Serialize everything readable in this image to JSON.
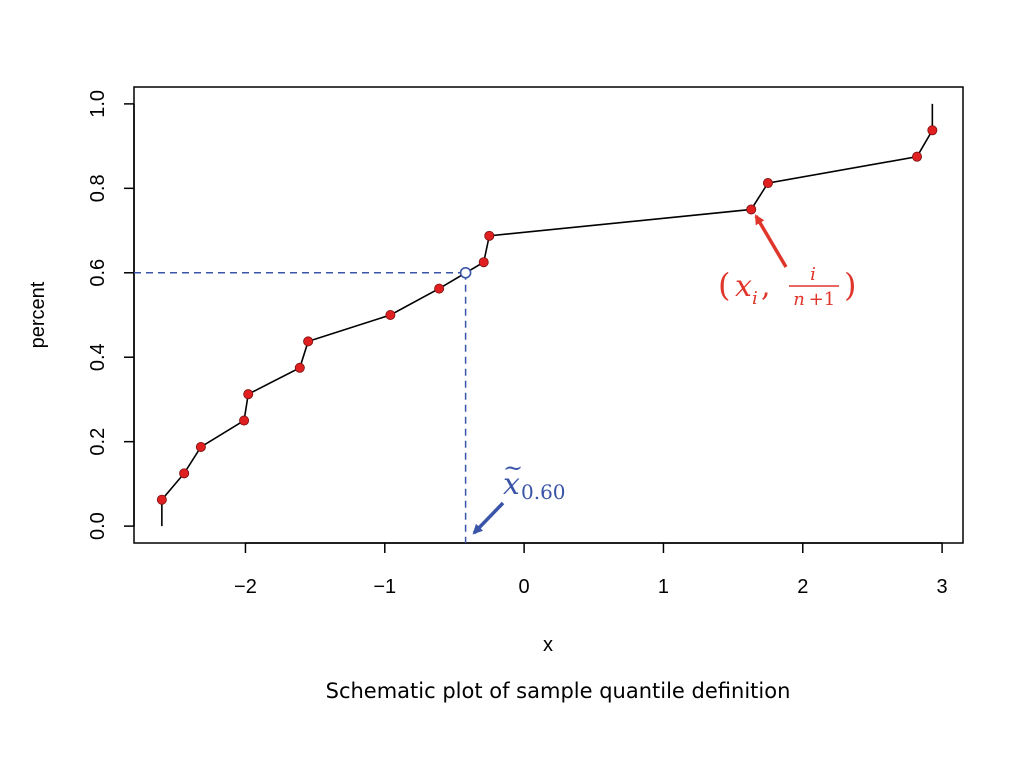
{
  "chart_data": {
    "type": "line",
    "xlabel": "x",
    "ylabel": "percent",
    "caption": "Schematic plot of sample quantile definition",
    "xlim": [
      -2.8,
      3.15
    ],
    "ylim": [
      -0.04,
      1.04
    ],
    "x_ticks": [
      -2,
      -1,
      0,
      1,
      2,
      3
    ],
    "x_tick_labels": [
      "−2",
      "−1",
      "0",
      "1",
      "2",
      "3"
    ],
    "y_ticks": [
      0.0,
      0.2,
      0.4,
      0.6,
      0.8,
      1.0
    ],
    "y_tick_labels": [
      "0.0",
      "0.2",
      "0.4",
      "0.6",
      "0.8",
      "1.0"
    ],
    "grid": false,
    "series": [
      {
        "x": [
          -2.6,
          -2.44,
          -2.32,
          -2.01,
          -1.98,
          -1.61,
          -1.55,
          -0.96,
          -0.61,
          -0.29,
          -0.25,
          1.63,
          1.75,
          2.82,
          2.93
        ],
        "y": [
          0.0625,
          0.125,
          0.1875,
          0.25,
          0.3125,
          0.375,
          0.4375,
          0.5,
          0.5625,
          0.625,
          0.6875,
          0.75,
          0.8125,
          0.875,
          0.9375
        ],
        "color": "#e02020",
        "line_color": "#000000"
      }
    ],
    "line_start": [
      -2.6,
      0.0
    ],
    "line_end": [
      2.93,
      1.0
    ],
    "quantile_point": {
      "x": -0.42,
      "y": 0.6,
      "color": "#3a55a8"
    },
    "annotations": {
      "point_label": {
        "open": "(",
        "var": "x",
        "sub": "i",
        "sep": ",",
        "num": "i",
        "den_n": "n",
        "den_rest": "+1",
        "close": ")",
        "color": "#e0352b"
      },
      "quantile_label": {
        "var": "x",
        "tilde": "~",
        "sub": "0.60",
        "color": "#3a55a8"
      }
    }
  }
}
